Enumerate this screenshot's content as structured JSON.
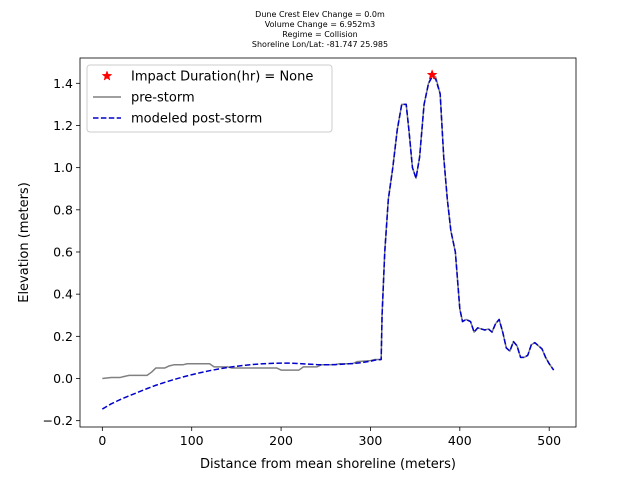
{
  "chart_data": {
    "type": "line",
    "title_lines": [
      "Dune Crest Elev Change = 0.0m",
      "Volume Change = 6.952m3",
      "Regime = Collision",
      "Shoreline Lon/Lat: -81.747 25.985"
    ],
    "xlabel": "Distance from mean shoreline (meters)",
    "ylabel": "Elevation (meters)",
    "xlim": [
      -25,
      530
    ],
    "ylim": [
      -0.23,
      1.52
    ],
    "x_ticks": [
      0,
      100,
      200,
      300,
      400,
      500
    ],
    "y_ticks": [
      -0.2,
      0.0,
      0.2,
      0.4,
      0.6,
      0.8,
      1.0,
      1.2,
      1.4
    ],
    "y_tick_labels": [
      "−0.2",
      "0.0",
      "0.2",
      "0.4",
      "0.6",
      "0.8",
      "1.0",
      "1.2",
      "1.4"
    ],
    "legend_position": "top-left",
    "grid": false,
    "series": [
      {
        "name": "Impact Duration(hr) = None",
        "style": "marker",
        "marker": "star",
        "color": "#ff0000",
        "x": [
          369
        ],
        "y": [
          1.44
        ]
      },
      {
        "name": "pre-storm",
        "style": "solid",
        "color": "#808080",
        "x": [
          0,
          10,
          20,
          25,
          30,
          50,
          55,
          60,
          70,
          75,
          80,
          90,
          95,
          100,
          110,
          120,
          125,
          140,
          145,
          160,
          175,
          190,
          195,
          200,
          210,
          220,
          225,
          240,
          245,
          260,
          265,
          280,
          285,
          300,
          305,
          312,
          313,
          316,
          320,
          325,
          330,
          335,
          340,
          343,
          347,
          351,
          355,
          360,
          365,
          369,
          373,
          378,
          382,
          386,
          390,
          395,
          400,
          403,
          407,
          412,
          416,
          420,
          424,
          428,
          432,
          436,
          440,
          444,
          448,
          452,
          456,
          460,
          464,
          468,
          472,
          476,
          480,
          484,
          488,
          492,
          496,
          500,
          505
        ],
        "y": [
          0.0,
          0.005,
          0.005,
          0.01,
          0.015,
          0.015,
          0.03,
          0.05,
          0.05,
          0.06,
          0.065,
          0.065,
          0.07,
          0.07,
          0.07,
          0.07,
          0.055,
          0.055,
          0.05,
          0.05,
          0.05,
          0.05,
          0.05,
          0.04,
          0.04,
          0.04,
          0.055,
          0.055,
          0.065,
          0.065,
          0.07,
          0.07,
          0.08,
          0.085,
          0.09,
          0.09,
          0.3,
          0.6,
          0.85,
          1.0,
          1.18,
          1.3,
          1.3,
          1.18,
          1.0,
          0.95,
          1.05,
          1.3,
          1.4,
          1.44,
          1.43,
          1.35,
          1.05,
          0.85,
          0.7,
          0.6,
          0.33,
          0.27,
          0.28,
          0.27,
          0.22,
          0.24,
          0.235,
          0.23,
          0.235,
          0.22,
          0.26,
          0.28,
          0.22,
          0.145,
          0.13,
          0.175,
          0.155,
          0.1,
          0.1,
          0.11,
          0.16,
          0.17,
          0.155,
          0.14,
          0.1,
          0.07,
          0.04
        ]
      },
      {
        "name": "modeled post-storm",
        "style": "dashed",
        "color": "#0000cc",
        "x": [
          0,
          10,
          20,
          30,
          40,
          50,
          60,
          70,
          80,
          90,
          100,
          110,
          120,
          130,
          140,
          150,
          160,
          170,
          180,
          190,
          200,
          210,
          220,
          230,
          240,
          250,
          260,
          270,
          280,
          290,
          300,
          305,
          312,
          313,
          316,
          320,
          325,
          330,
          335,
          340,
          343,
          347,
          351,
          355,
          360,
          365,
          369,
          373,
          378,
          382,
          386,
          390,
          395,
          400,
          403,
          407,
          412,
          416,
          420,
          424,
          428,
          432,
          436,
          440,
          444,
          448,
          452,
          456,
          460,
          464,
          468,
          472,
          476,
          480,
          484,
          488,
          492,
          496,
          500,
          505
        ],
        "y": [
          -0.145,
          -0.12,
          -0.1,
          -0.082,
          -0.065,
          -0.048,
          -0.032,
          -0.018,
          -0.005,
          0.007,
          0.018,
          0.028,
          0.037,
          0.045,
          0.052,
          0.058,
          0.063,
          0.067,
          0.07,
          0.072,
          0.073,
          0.073,
          0.071,
          0.068,
          0.066,
          0.065,
          0.066,
          0.068,
          0.071,
          0.075,
          0.082,
          0.087,
          0.09,
          0.3,
          0.6,
          0.85,
          1.0,
          1.18,
          1.3,
          1.3,
          1.18,
          1.0,
          0.95,
          1.05,
          1.3,
          1.4,
          1.43,
          1.42,
          1.35,
          1.05,
          0.85,
          0.7,
          0.6,
          0.33,
          0.27,
          0.28,
          0.27,
          0.22,
          0.24,
          0.235,
          0.23,
          0.235,
          0.22,
          0.26,
          0.28,
          0.22,
          0.145,
          0.13,
          0.175,
          0.155,
          0.1,
          0.1,
          0.11,
          0.16,
          0.17,
          0.155,
          0.14,
          0.1,
          0.07,
          0.04
        ]
      }
    ]
  }
}
